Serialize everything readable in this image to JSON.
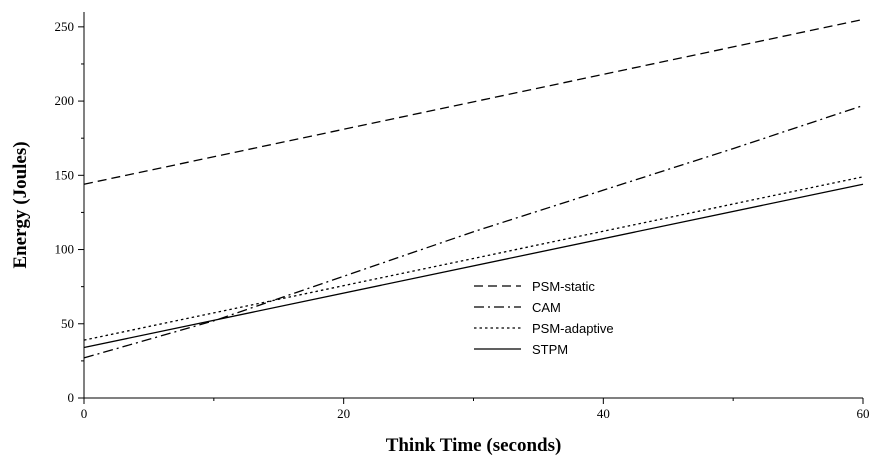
{
  "chart_data": {
    "type": "line",
    "title": "",
    "xlabel": "Think Time (seconds)",
    "ylabel": "Energy (Joules)",
    "xlim": [
      0,
      60
    ],
    "ylim": [
      0,
      260
    ],
    "x_ticks": [
      0,
      20,
      40,
      60
    ],
    "y_ticks": [
      0,
      50,
      100,
      150,
      200,
      250
    ],
    "grid": false,
    "legend_position": "center-right",
    "series": [
      {
        "name": "PSM-static",
        "style": "dashed",
        "color": "#000000",
        "x": [
          0,
          60
        ],
        "y": [
          144,
          255
        ]
      },
      {
        "name": "CAM",
        "style": "dash-dot",
        "color": "#000000",
        "x": [
          0,
          10,
          20,
          30,
          40,
          50,
          60
        ],
        "y": [
          27,
          52,
          82,
          112,
          140,
          168,
          197
        ]
      },
      {
        "name": "PSM-adaptive",
        "style": "dotted",
        "color": "#000000",
        "x": [
          0,
          60
        ],
        "y": [
          39,
          149
        ]
      },
      {
        "name": "STPM",
        "style": "solid",
        "color": "#000000",
        "x": [
          0,
          60
        ],
        "y": [
          34,
          144
        ]
      }
    ]
  }
}
